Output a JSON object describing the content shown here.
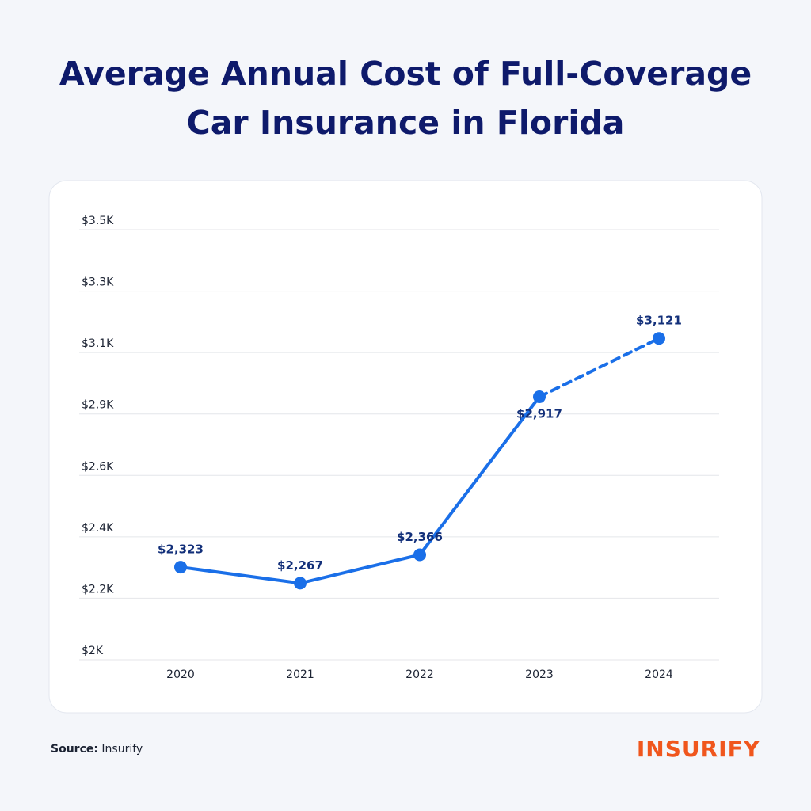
{
  "chart_data": {
    "type": "line",
    "title": [
      "Average Annual Cost of Full-Coverage",
      "Car Insurance in Florida"
    ],
    "categories": [
      "2020",
      "2021",
      "2022",
      "2023",
      "2024"
    ],
    "values": [
      2323,
      2267,
      2366,
      2917,
      3121
    ],
    "value_labels": [
      "$2,323",
      "$2,267",
      "$2,366",
      "$2,917",
      "$3,121"
    ],
    "color": "#1a6fe8",
    "segment_styles": [
      "solid",
      "solid",
      "solid",
      "dashed"
    ],
    "ylim": [
      2000,
      3500
    ],
    "yticks": [
      {
        "value": 2000,
        "label": "$2K"
      },
      {
        "value": 2214.29,
        "label": "$2.2K"
      },
      {
        "value": 2428.57,
        "label": "$2.4K"
      },
      {
        "value": 2642.86,
        "label": "$2.6K"
      },
      {
        "value": 2857.14,
        "label": "$2.9K"
      },
      {
        "value": 3071.43,
        "label": "$3.1K"
      },
      {
        "value": 3285.71,
        "label": "$3.3K"
      },
      {
        "value": 3500,
        "label": "$3.5K"
      }
    ],
    "grid": true
  },
  "footer": {
    "source_label": "Source:",
    "source": "Insurify",
    "logo": "INSURIFY"
  }
}
